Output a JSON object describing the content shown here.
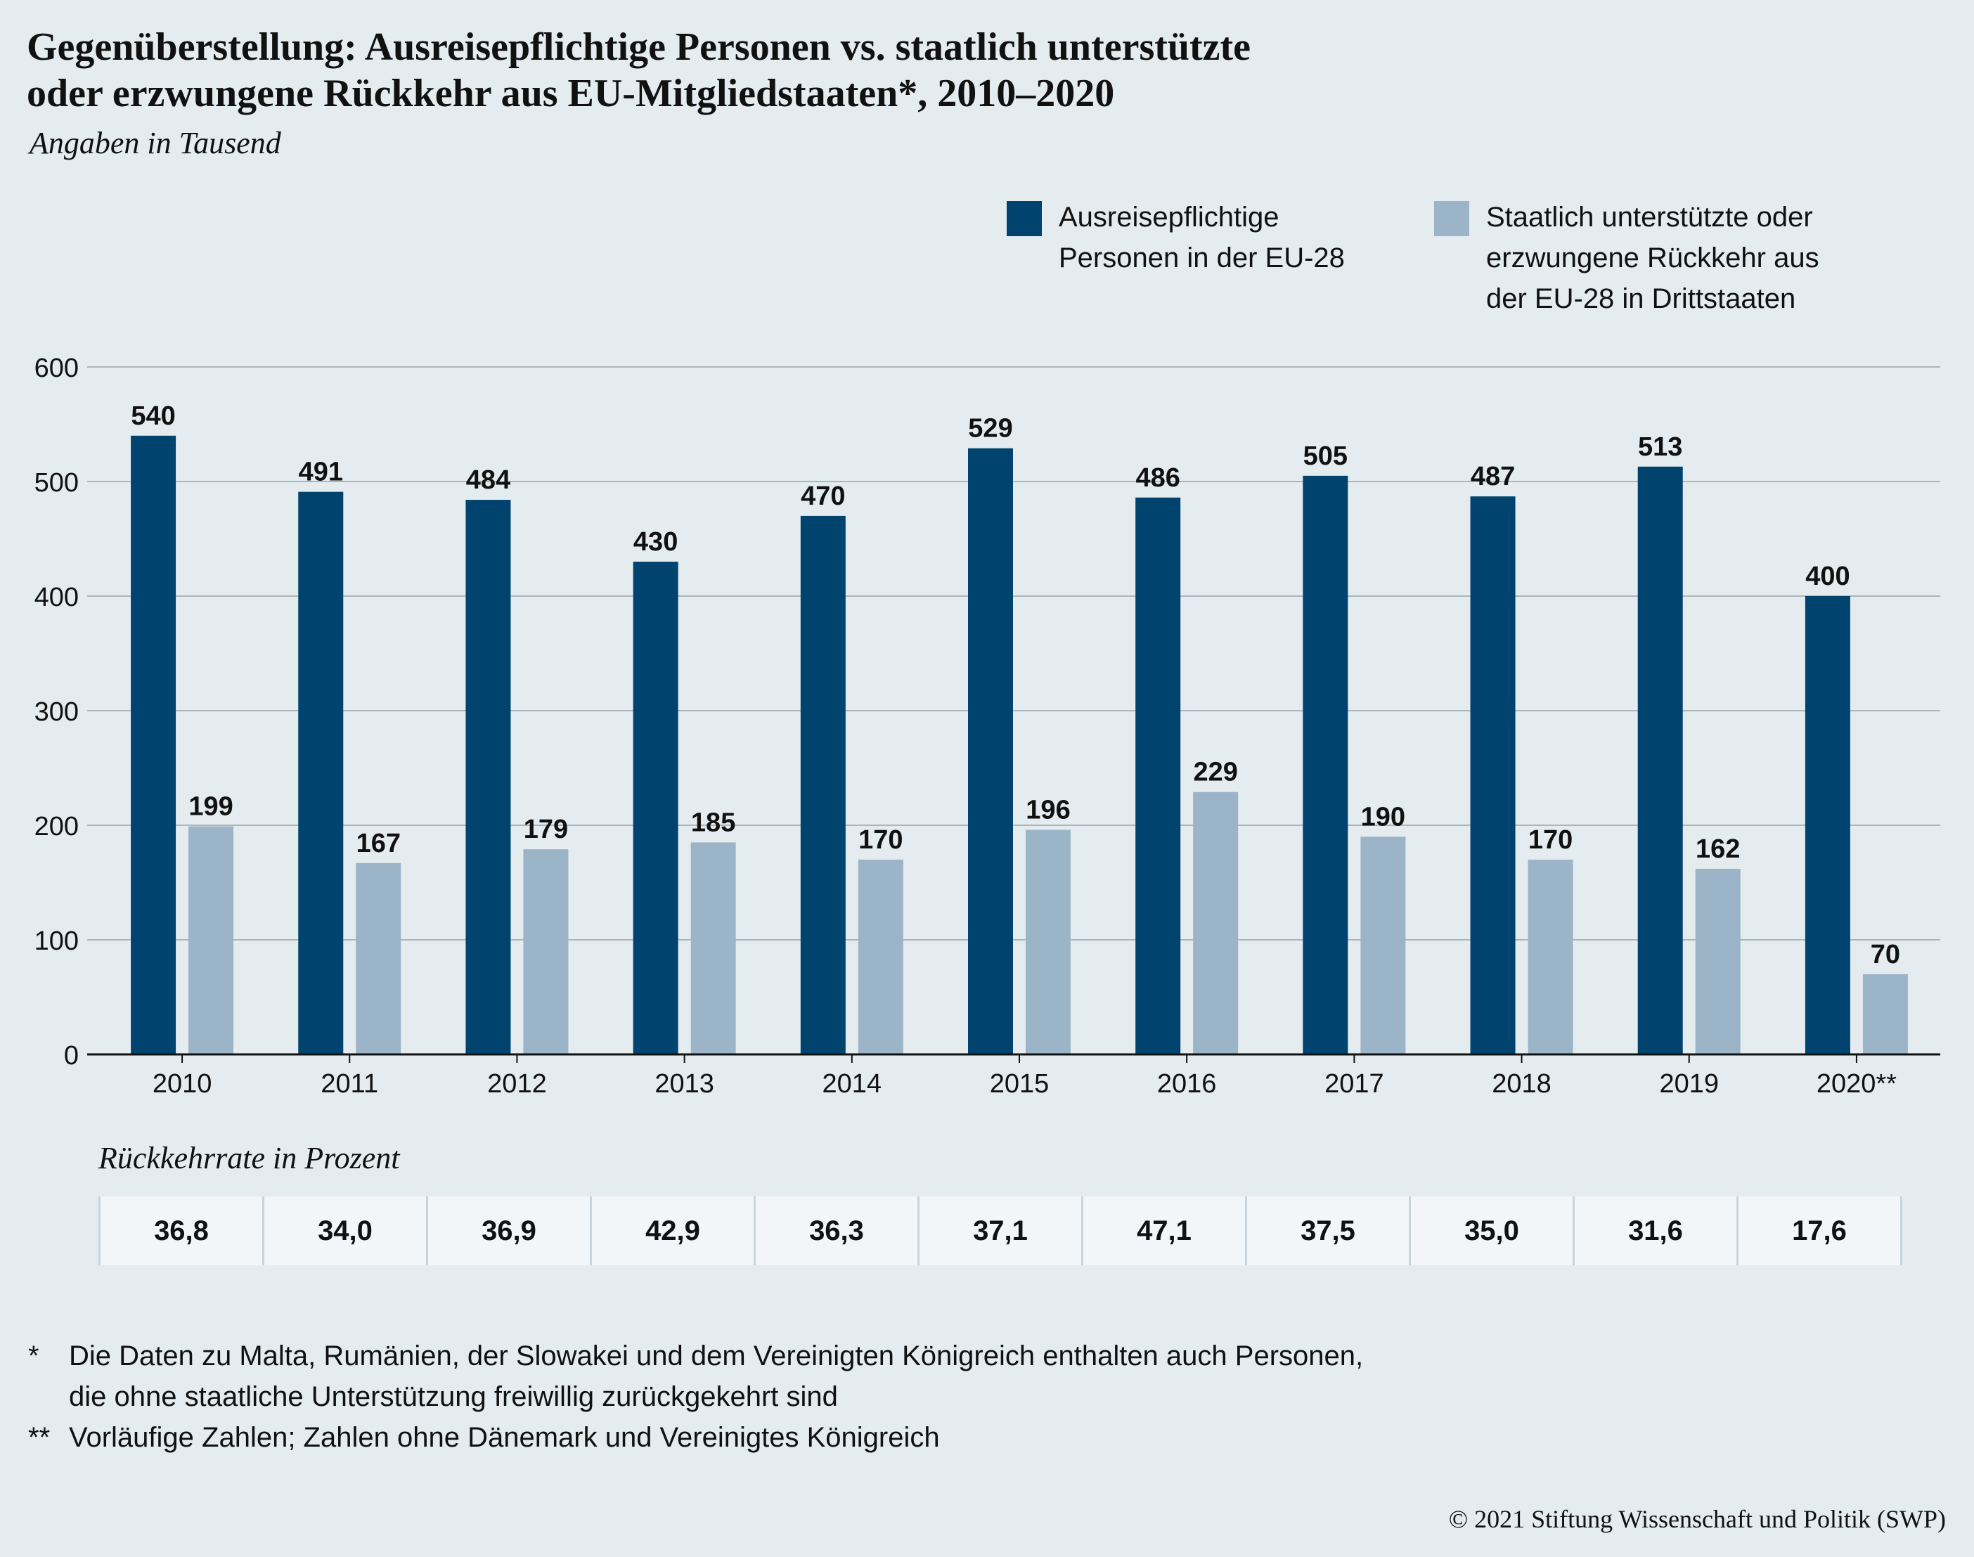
{
  "title_lines": [
    "Gegenüberstellung: Ausreisepflichtige Personen vs. staatlich unterstützte",
    "oder erzwungene Rückkehr aus EU-Mitgliedstaaten*, 2010–2020"
  ],
  "subtitle": "Angaben in Tausend",
  "legend": [
    {
      "label": "Ausreisepflichtige\nPersonen in der EU-28",
      "color": "#00436f"
    },
    {
      "label": "Staatlich unterstützte oder\nerzwungene Rückkehr aus\nder EU-28 in Drittstaaten",
      "color": "#9cb4c7"
    }
  ],
  "chart_data": {
    "type": "bar",
    "categories": [
      "2010",
      "2011",
      "2012",
      "2013",
      "2014",
      "2015",
      "2016",
      "2017",
      "2018",
      "2019",
      "2020**"
    ],
    "series": [
      {
        "name": "Ausreisepflichtige Personen in der EU-28",
        "color": "#00436f",
        "values": [
          540,
          491,
          484,
          430,
          470,
          529,
          486,
          505,
          487,
          513,
          400
        ]
      },
      {
        "name": "Staatlich unterstützte oder erzwungene Rückkehr aus der EU-28 in Drittstaaten",
        "color": "#9cb4c7",
        "values": [
          199,
          167,
          179,
          185,
          170,
          196,
          229,
          190,
          170,
          162,
          70
        ]
      }
    ],
    "yticks": [
      0,
      100,
      200,
      300,
      400,
      500,
      600
    ],
    "ylim": [
      0,
      600
    ],
    "grid": true,
    "data_labels": true
  },
  "rate": {
    "title": "Rückkehrrate in Prozent",
    "values": [
      "36,8",
      "34,0",
      "36,9",
      "42,9",
      "36,3",
      "37,1",
      "47,1",
      "37,5",
      "35,0",
      "31,6",
      "17,6"
    ]
  },
  "footnotes": [
    {
      "mark": "*",
      "text": "Die Daten zu Malta, Rumänien, der Slowakei und dem Vereinigten Königreich enthalten auch Personen,\ndie ohne staatliche Unterstützung freiwillig zurückgekehrt sind"
    },
    {
      "mark": "**",
      "text": "Vorläufige Zahlen; Zahlen ohne Dänemark und Vereinigtes Königreich"
    }
  ],
  "copyright": "© 2021 Stiftung Wissenschaft und Politik (SWP)"
}
